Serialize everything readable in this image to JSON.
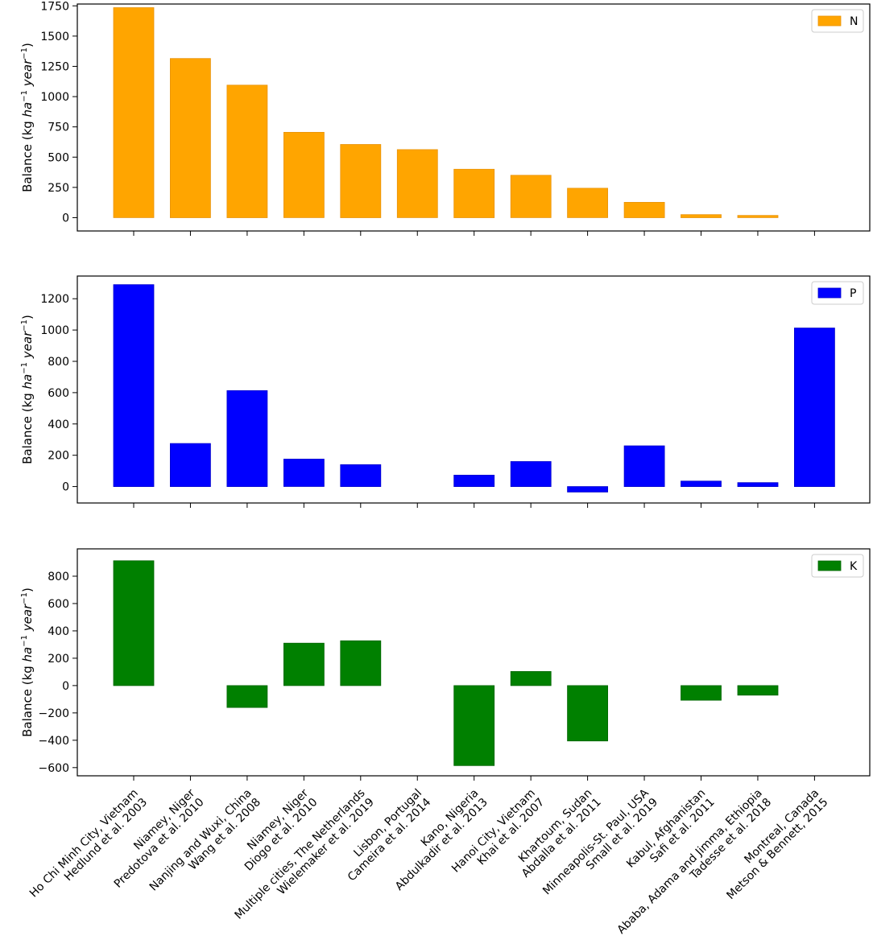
{
  "chart_data": {
    "type": "bar",
    "categories": [
      [
        "Ho Chi Minh City, Vietnam",
        "Hedlund et al. 2003"
      ],
      [
        "Niamey, Niger",
        "Predotova et al. 2010"
      ],
      [
        "Nanjing and Wuxi, China",
        "Wang et al. 2008"
      ],
      [
        "Niamey, Niger",
        "Diogo et al. 2010"
      ],
      [
        "Multiple cities, The Netherlands",
        "Wielemaker et al. 2019"
      ],
      [
        "Lisbon, Portugal",
        "Cameira et al. 2014"
      ],
      [
        "Kano, Nigeria",
        "Abdulkadir et al. 2013"
      ],
      [
        "Hanoi City, Vietnam",
        "Khai et al. 2007"
      ],
      [
        "Khartoum, Sudan",
        "Abdalla et al. 2011"
      ],
      [
        "Minneapolis-St. Paul, USA",
        "Small et al. 2019"
      ],
      [
        "Kabul, Afghanistan",
        "Safi et al. 2011"
      ],
      [
        "Ababa, Adama and Jimma, Ethiopia",
        "Tadesse et al. 2018"
      ],
      [
        "Montreal, Canada",
        "Metson & Bennett, 2015"
      ]
    ],
    "ylabel_prefix": "Balance (kg ",
    "ylabel_ha": "ha",
    "ylabel_ha_exp": "−1",
    "ylabel_year": "year",
    "ylabel_year_exp": "−1",
    "ylabel_suffix": ")",
    "panels": [
      {
        "name": "N",
        "legend": "N",
        "color": "#ffa500",
        "edge": "#e8930a",
        "ylim": [
          -110,
          1765
        ],
        "yticks": [
          0,
          250,
          500,
          750,
          1000,
          1250,
          1500,
          1750
        ],
        "ytick_labels": [
          "0",
          "250",
          "500",
          "750",
          "1000",
          "1250",
          "1500",
          "1750"
        ],
        "values": [
          1735,
          1315,
          1095,
          705,
          605,
          562,
          400,
          350,
          243,
          127,
          25,
          18,
          null
        ]
      },
      {
        "name": "P",
        "legend": "P",
        "color": "#0000ff",
        "edge": "#0000cc",
        "ylim": [
          -105,
          1345
        ],
        "yticks": [
          0,
          200,
          400,
          600,
          800,
          1000,
          1200
        ],
        "ytick_labels": [
          "0",
          "200",
          "400",
          "600",
          "800",
          "1000",
          "1200"
        ],
        "values": [
          1290,
          275,
          613,
          175,
          140,
          null,
          73,
          160,
          -35,
          260,
          35,
          25,
          1013
        ]
      },
      {
        "name": "K",
        "legend": "K",
        "color": "#008000",
        "edge": "#006400",
        "ylim": [
          -660,
          1000
        ],
        "yticks": [
          -600,
          -400,
          -200,
          0,
          200,
          400,
          600,
          800
        ],
        "ytick_labels": [
          "−600",
          "−400",
          "−200",
          "0",
          "200",
          "400",
          "600",
          "800"
        ],
        "values": [
          913,
          null,
          -160,
          310,
          328,
          null,
          -585,
          103,
          -405,
          null,
          -107,
          -70,
          null
        ]
      }
    ]
  }
}
